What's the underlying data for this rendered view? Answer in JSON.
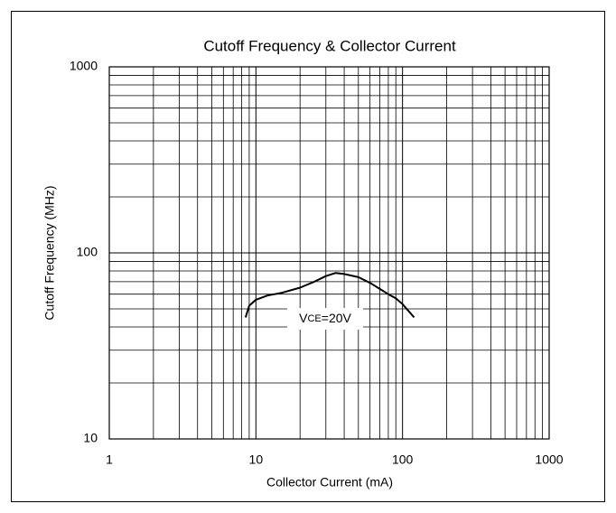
{
  "chart_data": {
    "type": "line",
    "title": "Cutoff Frequency & Collector Current",
    "x_label": "Collector Current (mA)",
    "y_label": "Cutoff Frequency (MHz)",
    "log_x": true,
    "log_y": true,
    "grid": "minor",
    "xlim": [
      1,
      1000
    ],
    "ylim": [
      10,
      1000
    ],
    "xticks": [
      1,
      10,
      100,
      1000
    ],
    "yticks": [
      10,
      100,
      1000
    ],
    "annotation": {
      "base": "V",
      "sub": "CE",
      "rest": "=20V"
    },
    "series": [
      {
        "color": "#000000",
        "x": [
          8.5,
          9,
          10,
          12,
          15,
          20,
          25,
          30,
          35,
          40,
          50,
          60,
          70,
          80,
          90,
          100,
          120
        ],
        "values": [
          45,
          52,
          56,
          59,
          61,
          65,
          70,
          75,
          78,
          77,
          74,
          69,
          64,
          60,
          57,
          53,
          45
        ]
      }
    ]
  }
}
